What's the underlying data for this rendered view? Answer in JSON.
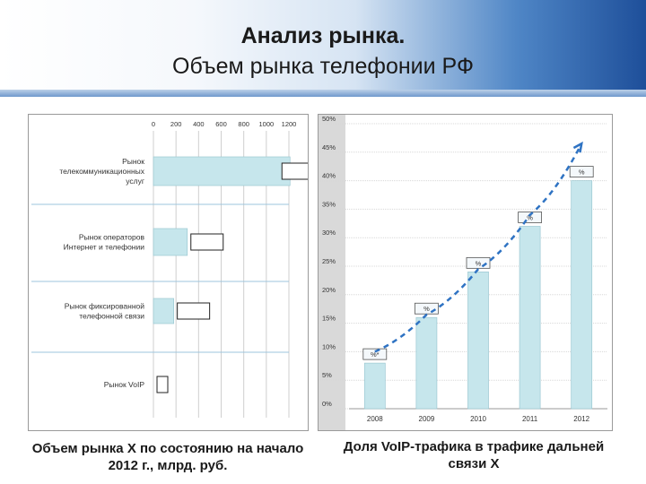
{
  "header": {
    "title_line1": "Анализ рынка.",
    "title_line2": "Объем рынка телефонии РФ"
  },
  "captions": {
    "left": "Объем рынка X по состоянию на начало 2012 г., млрд. руб.",
    "right": "Доля VoIP-трафика в трафике дальней связи X"
  },
  "chart_data": [
    {
      "type": "bar",
      "orientation": "horizontal",
      "title": "",
      "xlabel": "",
      "ylabel": "",
      "x_ticks": [
        "0",
        "200",
        "400",
        "600",
        "800",
        "1000",
        "1200"
      ],
      "xlim": [
        0,
        1200
      ],
      "categories": [
        "Рынок телекоммуникационных услуг",
        "Рынок операторов Интернет и телефонии",
        "Рынок фиксированной телефонной связи",
        "Рынок VoIP"
      ],
      "category_lines": [
        [
          "Рынок",
          "телекоммуникационных",
          "услуг"
        ],
        [
          "Рынок операторов",
          "Интернет и телефонии"
        ],
        [
          "Рынок фиксированной",
          "телефонной связи"
        ],
        [
          "Рынок VoIP"
        ]
      ],
      "values": [
        1210,
        300,
        180,
        0
      ],
      "colors": {
        "bar": "#c6e6ec",
        "bar_stroke": "#9cc8d2",
        "grid": "#cfcfcf"
      },
      "grid": true,
      "legend": "none"
    },
    {
      "type": "bar",
      "title": "",
      "xlabel": "",
      "ylabel": "",
      "categories": [
        "2008",
        "2009",
        "2010",
        "2011",
        "2012"
      ],
      "values": [
        8,
        16,
        24,
        32,
        40
      ],
      "y_ticks": [
        "0%",
        "5%",
        "10%",
        "15%",
        "20%",
        "25%",
        "30%",
        "35%",
        "40%",
        "45%",
        "50%"
      ],
      "ylim": [
        0,
        50
      ],
      "data_labels": [
        "%*",
        "%",
        "%",
        "%",
        "%"
      ],
      "trend": {
        "type": "dashed-arrow",
        "values": [
          10,
          16.5,
          24.5,
          34,
          46.5
        ]
      },
      "colors": {
        "bar": "#c6e6ec",
        "bar_stroke": "#9cc8d2",
        "grid": "#d8d8d8",
        "trend": "#2f73c3",
        "axis_strip": "#d9d9d9"
      },
      "grid": true,
      "legend": "none"
    }
  ]
}
